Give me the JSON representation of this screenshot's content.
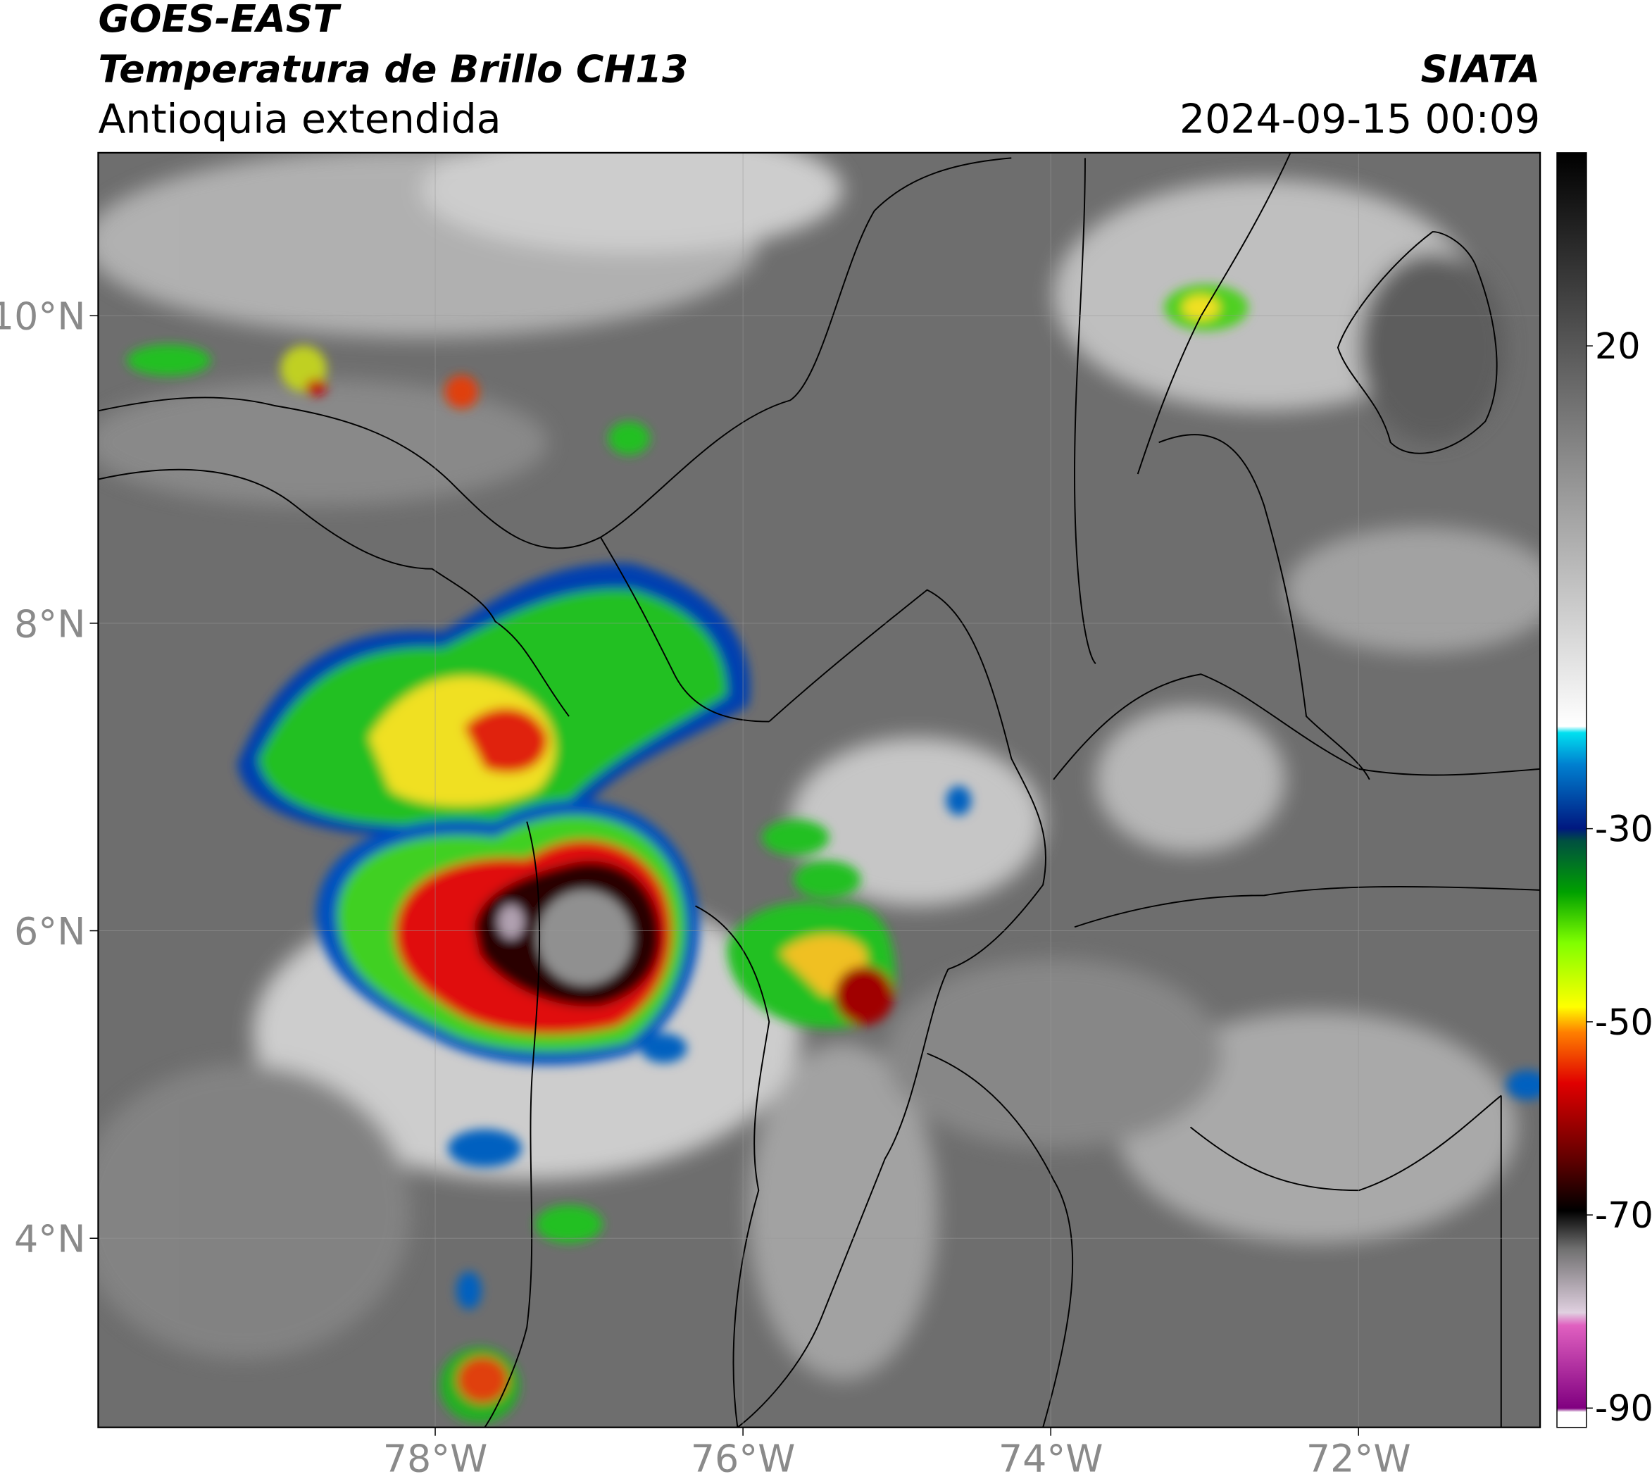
{
  "header": {
    "title": "GOES-EAST",
    "subtitle": "Temperatura de Brillo CH13",
    "region": "Antioquia extendida",
    "source": "SIATA",
    "datetime": "2024-09-15 00:09"
  },
  "map": {
    "xlim": [
      -80.19,
      -70.82
    ],
    "ylim": [
      2.77,
      11.06
    ],
    "xticks": [
      {
        "value": -78,
        "label": "78°W"
      },
      {
        "value": -76,
        "label": "76°W"
      },
      {
        "value": -74,
        "label": "74°W"
      },
      {
        "value": -72,
        "label": "72°W"
      }
    ],
    "yticks": [
      {
        "value": 4,
        "label": "4°N"
      },
      {
        "value": 6,
        "label": "6°N"
      },
      {
        "value": 8,
        "label": "8°N"
      },
      {
        "value": 10,
        "label": "10°N"
      }
    ],
    "grid": true
  },
  "colorbar": {
    "lim": [
      -92,
      40
    ],
    "ticks": [
      -90,
      -70,
      -50,
      -30,
      20
    ]
  }
}
